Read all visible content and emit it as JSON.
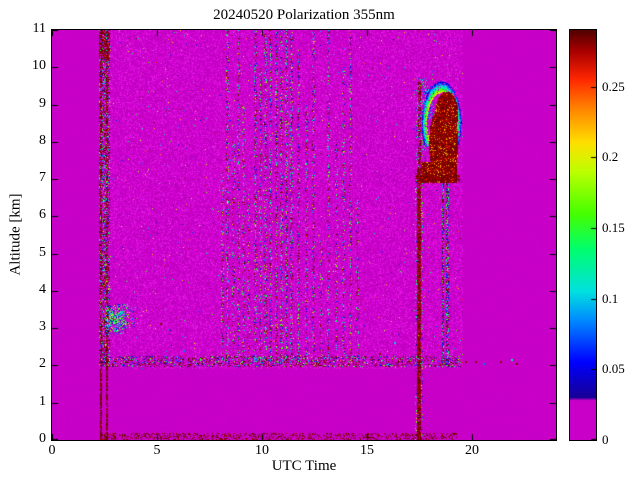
{
  "chart_data": {
    "type": "heatmap",
    "title": "20240520 Polarization 355nm",
    "xlabel": "UTC Time",
    "ylabel": "Altitude [km]",
    "xlim": [
      0,
      24
    ],
    "ylim": [
      0,
      11
    ],
    "xticks": [
      0,
      5,
      10,
      15,
      20
    ],
    "yticks": [
      0,
      1,
      2,
      3,
      4,
      5,
      6,
      7,
      8,
      9,
      10,
      11
    ],
    "grid": false,
    "legend": "none",
    "colorbar": {
      "min": 0,
      "max": 0.29,
      "ticks": [
        0,
        0.05,
        0.1,
        0.15,
        0.2,
        0.25
      ],
      "position": "right"
    },
    "background_value": 0,
    "background_color": "#c800c8",
    "colormap_stops": [
      [
        0.0,
        [
          200,
          0,
          200
        ]
      ],
      [
        0.028,
        [
          200,
          0,
          200
        ]
      ],
      [
        0.03,
        [
          24,
          0,
          150
        ]
      ],
      [
        0.055,
        [
          0,
          0,
          255
        ]
      ],
      [
        0.085,
        [
          0,
          140,
          255
        ]
      ],
      [
        0.105,
        [
          0,
          225,
          225
        ]
      ],
      [
        0.135,
        [
          0,
          255,
          110
        ]
      ],
      [
        0.16,
        [
          70,
          255,
          0
        ]
      ],
      [
        0.19,
        [
          190,
          255,
          0
        ]
      ],
      [
        0.21,
        [
          255,
          225,
          0
        ]
      ],
      [
        0.235,
        [
          255,
          130,
          0
        ]
      ],
      [
        0.255,
        [
          255,
          40,
          0
        ]
      ],
      [
        0.275,
        [
          170,
          0,
          0
        ]
      ],
      [
        0.29,
        [
          80,
          0,
          0
        ]
      ]
    ],
    "features": [
      {
        "id": "texture",
        "type": "background_texture",
        "t": [
          2.3,
          19.55
        ],
        "z": [
          1.9,
          11
        ],
        "strength": 0.25,
        "sparse_dot_density": 0.006
      },
      {
        "id": "calib-stripe",
        "type": "noisy_stripe",
        "t": [
          2.26,
          2.78
        ],
        "z_split": 2.0,
        "interior_density": 0.4,
        "lines": [
          {
            "t": 2.33,
            "halfwidth": 0.035,
            "density_low": 0.8,
            "density_high": 0.5
          },
          {
            "t": 2.63,
            "halfwidth": 0.035,
            "density_low": 0.7,
            "density_high": 0.45
          }
        ],
        "top": {
          "z": [
            10.2,
            11
          ],
          "density": 0.5
        }
      },
      {
        "id": "aerosol-patch",
        "type": "speckle_patch",
        "t": [
          2.55,
          4.3
        ],
        "z": [
          2.85,
          3.65
        ],
        "center": [
          3.05,
          3.25
        ],
        "sigma": [
          0.55,
          0.35
        ],
        "density": 0.85,
        "v": [
          0.03,
          0.2
        ]
      },
      {
        "id": "noise-columns",
        "type": "column_set",
        "halfwidth": 0.05,
        "columns": [
          {
            "t": 8.1,
            "density": 0.35,
            "z": [
              2.1,
              7.2
            ]
          },
          {
            "t": 8.35,
            "density": 0.3,
            "z": [
              2.1,
              11
            ]
          },
          {
            "t": 8.6,
            "density": 0.25,
            "z": [
              2.1,
              8
            ]
          },
          {
            "t": 8.85,
            "density": 0.3,
            "z": [
              2.1,
              11
            ]
          },
          {
            "t": 9.1,
            "density": 0.3,
            "z": [
              2.1,
              9
            ]
          },
          {
            "t": 9.35,
            "density": 0.25,
            "z": [
              2.1,
              7
            ]
          },
          {
            "t": 9.65,
            "density": 0.35,
            "z": [
              2.1,
              11
            ]
          },
          {
            "t": 9.9,
            "density": 0.3,
            "z": [
              2.1,
              10
            ]
          },
          {
            "t": 10.15,
            "density": 0.45,
            "z": [
              2.1,
              11
            ]
          },
          {
            "t": 10.4,
            "density": 0.4,
            "z": [
              2.1,
              11
            ]
          },
          {
            "t": 10.65,
            "density": 0.45,
            "z": [
              2.1,
              11
            ]
          },
          {
            "t": 10.9,
            "density": 0.4,
            "z": [
              2.1,
              11
            ]
          },
          {
            "t": 11.15,
            "density": 0.45,
            "z": [
              2.1,
              11
            ]
          },
          {
            "t": 11.4,
            "density": 0.4,
            "z": [
              2.1,
              11
            ]
          },
          {
            "t": 11.7,
            "density": 0.35,
            "z": [
              2.1,
              10.5
            ]
          },
          {
            "t": 12.1,
            "density": 0.3,
            "z": [
              2.1,
              9
            ]
          },
          {
            "t": 12.45,
            "density": 0.3,
            "z": [
              2.1,
              11
            ]
          },
          {
            "t": 12.8,
            "density": 0.2,
            "z": [
              2.1,
              6
            ]
          },
          {
            "t": 13.15,
            "density": 0.3,
            "z": [
              2.1,
              11
            ]
          },
          {
            "t": 13.5,
            "density": 0.25,
            "z": [
              2.1,
              8
            ]
          },
          {
            "t": 13.85,
            "density": 0.3,
            "z": [
              2.1,
              10
            ]
          },
          {
            "t": 14.2,
            "density": 0.3,
            "z": [
              2.1,
              11
            ]
          },
          {
            "t": 14.5,
            "density": 0.25,
            "z": [
              2.1,
              6.5
            ]
          }
        ]
      },
      {
        "id": "layer-top-band",
        "type": "h_band",
        "t": [
          2.3,
          19.5
        ],
        "z": [
          1.95,
          2.25
        ],
        "density": 0.28
      },
      {
        "id": "ground-band",
        "type": "h_band_dark",
        "t": [
          2.3,
          19.3
        ],
        "z": [
          0,
          0.18
        ],
        "density": 0.3
      },
      {
        "id": "precip-vline",
        "type": "v_line",
        "t": 17.47,
        "halfwidth": 0.09,
        "z": [
          0,
          7.3
        ],
        "density": 0.85,
        "fringe_halfwidth": 0.2,
        "fringe_density": 0.15
      },
      {
        "id": "cloud-wall",
        "type": "v_line_dark",
        "t": 17.5,
        "halfwidth": 0.08,
        "z": [
          7.0,
          9.6
        ],
        "density": 0.45
      },
      {
        "id": "wall-specks",
        "type": "speckle_box",
        "t": [
          17.35,
          17.85
        ],
        "z": [
          7.3,
          9.7
        ],
        "density": 0.18,
        "v": [
          0.05,
          0.18
        ]
      },
      {
        "id": "upper-left-specks",
        "type": "speckle_box",
        "t": [
          17.7,
          18.2
        ],
        "z": [
          8.6,
          9.5
        ],
        "density": 0.3,
        "v": [
          0.04,
          0.12
        ]
      },
      {
        "id": "virga-streaks",
        "type": "streak_set",
        "centers": [
          18.62,
          18.82
        ],
        "halfwidth": 0.07,
        "z": [
          2.0,
          7.2
        ],
        "density": 0.6
      },
      {
        "id": "cloud",
        "type": "cloud_blob",
        "fringe": {
          "center": [
            18.55,
            8.5
          ],
          "rx": 0.85,
          "ry": 1.0,
          "rn": [
            0.8,
            1.12
          ],
          "zmin": 7.9,
          "density": 0.85,
          "v_inner": 0.21,
          "v_outer": 0.04
        },
        "core1": {
          "center": [
            18.65,
            7.95
          ],
          "rx": 0.7,
          "ry": 1.05
        },
        "core2": {
          "center": [
            18.8,
            8.75
          ],
          "rx": 0.55,
          "ry": 0.6
        },
        "base": {
          "t": [
            17.55,
            19.3
          ],
          "z": [
            6.9,
            7.45
          ]
        },
        "base_line": {
          "t": [
            17.3,
            19.42
          ],
          "z": 7.02,
          "halfwidth": 0.1,
          "density": 0.7
        },
        "core_v": [
          0.272,
          0.29
        ],
        "mottle_density": 0.12,
        "mottle_v": [
          0.21,
          0.26
        ]
      },
      {
        "id": "isolated-dots",
        "type": "dots",
        "points": [
          [
            20.2,
            2.1,
            0.28
          ],
          [
            20.55,
            2.05,
            0.08
          ],
          [
            21.4,
            2.1,
            0.28
          ],
          [
            21.9,
            2.15,
            0.12
          ],
          [
            22.15,
            2.05,
            0.28
          ],
          [
            16.35,
            2.6,
            0.1
          ],
          [
            15.6,
            2.3,
            0.28
          ],
          [
            6.3,
            2.4,
            0.08
          ],
          [
            5.2,
            3.1,
            0.28
          ],
          [
            7.1,
            2.15,
            0.15
          ],
          [
            4.6,
            2.05,
            0.28
          ],
          [
            19.7,
            2.1,
            0.28
          ]
        ]
      }
    ]
  }
}
